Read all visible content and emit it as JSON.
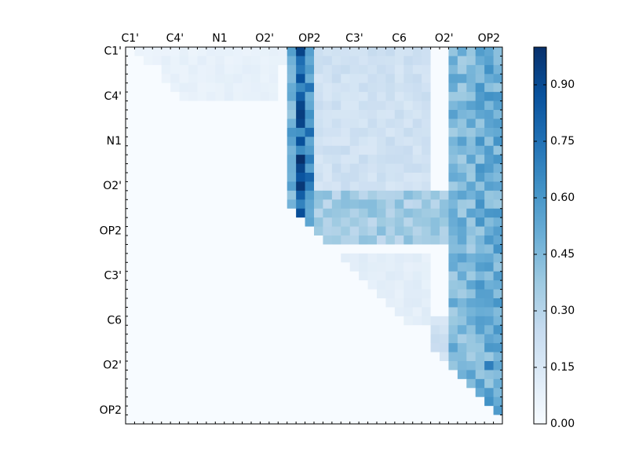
{
  "chart_data": {
    "type": "heatmap",
    "title": "",
    "xlabel": "",
    "ylabel": "",
    "grid": false,
    "colormap": "Blues",
    "x_tick_labels": [
      "C1'",
      "C4'",
      "N1",
      "O2'",
      "OP2",
      "C3'",
      "C6",
      "O2'",
      "OP2"
    ],
    "y_tick_labels": [
      "C1'",
      "C4'",
      "N1",
      "O2'",
      "OP2",
      "C3'",
      "C6",
      "O2'",
      "OP2"
    ],
    "x_tick_positions": [
      0.5,
      5.5,
      10.5,
      15.5,
      20.5,
      25.5,
      30.5,
      35.5,
      40.5
    ],
    "y_tick_positions": [
      0.5,
      5.5,
      10.5,
      15.5,
      20.5,
      25.5,
      30.5,
      35.5,
      40.5
    ],
    "n_rows": 42,
    "n_cols": 42,
    "upper_triangular": true,
    "colorbar": {
      "ticks": [
        0.0,
        0.15,
        0.3,
        0.45,
        0.6,
        0.75,
        0.9
      ],
      "tick_labels": [
        "0.00",
        "0.15",
        "0.30",
        "0.45",
        "0.60",
        "0.75",
        "0.90"
      ],
      "range": [
        0,
        1
      ],
      "placement": "right"
    },
    "regions": [
      {
        "rows": [
          0,
          1
        ],
        "cols": [
          1,
          17
        ],
        "value": 0.07
      },
      {
        "rows": [
          1,
          5
        ],
        "cols": [
          4,
          16
        ],
        "value": 0.08
      },
      {
        "rows": [
          0,
          21
        ],
        "cols": [
          18,
          18
        ],
        "value": 0.5
      },
      {
        "rows": [
          0,
          21
        ],
        "cols": [
          19,
          19
        ],
        "value": 0.78
      },
      {
        "rows": [
          0,
          21
        ],
        "cols": [
          20,
          20
        ],
        "value": 0.65
      },
      {
        "rows": [
          0,
          16
        ],
        "cols": [
          21,
          33
        ],
        "value": 0.2
      },
      {
        "rows": [
          0,
          37
        ],
        "cols": [
          36,
          38
        ],
        "value": 0.45
      },
      {
        "rows": [
          0,
          40
        ],
        "cols": [
          39,
          41
        ],
        "value": 0.5
      },
      {
        "rows": [
          16,
          21
        ],
        "cols": [
          21,
          35
        ],
        "value": 0.35
      },
      {
        "rows": [
          23,
          30
        ],
        "cols": [
          24,
          33
        ],
        "value": 0.1
      },
      {
        "rows": [
          30,
          38
        ],
        "cols": [
          34,
          35
        ],
        "value": 0.2
      }
    ],
    "peak_cells": [
      {
        "row": 7,
        "col": 19,
        "value": 0.95
      },
      {
        "row": 12,
        "col": 19,
        "value": 1.0
      },
      {
        "row": 13,
        "col": 19,
        "value": 0.92
      },
      {
        "row": 10,
        "col": 19,
        "value": 0.88
      },
      {
        "row": 5,
        "col": 19,
        "value": 0.82
      },
      {
        "row": 14,
        "col": 20,
        "value": 0.8
      },
      {
        "row": 2,
        "col": 19,
        "value": 0.72
      },
      {
        "row": 35,
        "col": 40,
        "value": 0.7
      }
    ]
  }
}
